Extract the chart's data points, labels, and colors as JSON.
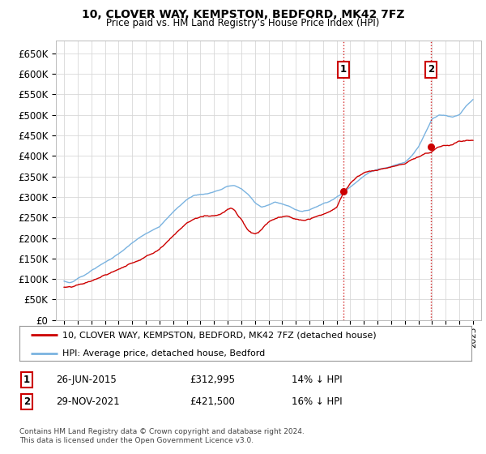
{
  "title": "10, CLOVER WAY, KEMPSTON, BEDFORD, MK42 7FZ",
  "subtitle": "Price paid vs. HM Land Registry’s House Price Index (HPI)",
  "legend_line1": "10, CLOVER WAY, KEMPSTON, BEDFORD, MK42 7FZ (detached house)",
  "legend_line2": "HPI: Average price, detached house, Bedford",
  "footer": "Contains HM Land Registry data © Crown copyright and database right 2024.\nThis data is licensed under the Open Government Licence v3.0.",
  "annotation1": {
    "num": "1",
    "date": "26-JUN-2015",
    "price": "£312,995",
    "pct": "14% ↓ HPI"
  },
  "annotation2": {
    "num": "2",
    "date": "29-NOV-2021",
    "price": "£421,500",
    "pct": "16% ↓ HPI"
  },
  "sale1_year": 2015.49,
  "sale1_price": 312995,
  "sale2_year": 2021.91,
  "sale2_price": 421500,
  "hpi_color": "#7ab3e0",
  "price_color": "#cc0000",
  "vline_color": "#cc0000",
  "background_color": "#ffffff",
  "grid_color": "#d8d8d8",
  "ylim": [
    0,
    680000
  ],
  "yticks": [
    0,
    50000,
    100000,
    150000,
    200000,
    250000,
    300000,
    350000,
    400000,
    450000,
    500000,
    550000,
    600000,
    650000
  ],
  "xmin": 1994.4,
  "xmax": 2025.6,
  "hpi_years": [
    1995.0,
    1995.08,
    1995.17,
    1995.25,
    1995.33,
    1995.42,
    1995.5,
    1995.58,
    1995.67,
    1995.75,
    1995.83,
    1995.92,
    1996.0,
    1996.5,
    1997.0,
    1997.5,
    1998.0,
    1998.5,
    1999.0,
    1999.5,
    2000.0,
    2000.5,
    2001.0,
    2001.5,
    2002.0,
    2002.5,
    2003.0,
    2003.5,
    2004.0,
    2004.5,
    2005.0,
    2005.5,
    2006.0,
    2006.5,
    2007.0,
    2007.5,
    2008.0,
    2008.5,
    2009.0,
    2009.5,
    2010.0,
    2010.5,
    2011.0,
    2011.5,
    2012.0,
    2012.5,
    2013.0,
    2013.5,
    2014.0,
    2014.5,
    2015.0,
    2015.5,
    2016.0,
    2016.5,
    2017.0,
    2017.5,
    2018.0,
    2018.5,
    2019.0,
    2019.5,
    2020.0,
    2020.5,
    2021.0,
    2021.5,
    2022.0,
    2022.5,
    2023.0,
    2023.5,
    2024.0,
    2024.5,
    2025.0
  ],
  "hpi_vals": [
    95000,
    94000,
    93000,
    92500,
    92000,
    91500,
    92000,
    93000,
    94000,
    96000,
    98000,
    100000,
    102000,
    110000,
    122000,
    132000,
    142000,
    152000,
    163000,
    175000,
    188000,
    200000,
    210000,
    218000,
    228000,
    248000,
    265000,
    280000,
    295000,
    305000,
    308000,
    310000,
    315000,
    320000,
    328000,
    330000,
    322000,
    308000,
    288000,
    278000,
    282000,
    290000,
    285000,
    280000,
    272000,
    268000,
    272000,
    280000,
    288000,
    295000,
    305000,
    315000,
    330000,
    345000,
    358000,
    368000,
    375000,
    378000,
    382000,
    388000,
    392000,
    408000,
    432000,
    465000,
    500000,
    510000,
    510000,
    505000,
    510000,
    530000,
    545000
  ],
  "red_years": [
    1995.0,
    1995.25,
    1995.5,
    1995.75,
    1996.0,
    1996.5,
    1997.0,
    1997.5,
    1998.0,
    1998.5,
    1999.0,
    1999.5,
    2000.0,
    2000.5,
    2001.0,
    2001.5,
    2002.0,
    2002.5,
    2003.0,
    2003.5,
    2004.0,
    2004.5,
    2005.0,
    2005.5,
    2006.0,
    2006.5,
    2007.0,
    2007.25,
    2007.5,
    2007.75,
    2008.0,
    2008.25,
    2008.5,
    2008.75,
    2009.0,
    2009.25,
    2009.5,
    2009.75,
    2010.0,
    2010.5,
    2011.0,
    2011.5,
    2012.0,
    2012.5,
    2013.0,
    2013.5,
    2014.0,
    2014.5,
    2015.0,
    2015.49,
    2016.0,
    2016.5,
    2017.0,
    2017.5,
    2018.0,
    2018.5,
    2019.0,
    2019.5,
    2020.0,
    2020.5,
    2021.0,
    2021.5,
    2021.91,
    2022.25,
    2022.5,
    2023.0,
    2023.5,
    2024.0,
    2024.5,
    2025.0
  ],
  "red_vals": [
    80000,
    79000,
    78000,
    80000,
    82000,
    86000,
    92000,
    98000,
    105000,
    112000,
    120000,
    128000,
    136000,
    145000,
    155000,
    163000,
    175000,
    192000,
    208000,
    225000,
    240000,
    250000,
    255000,
    258000,
    260000,
    265000,
    278000,
    282000,
    278000,
    265000,
    255000,
    240000,
    228000,
    222000,
    218000,
    222000,
    228000,
    238000,
    245000,
    252000,
    255000,
    255000,
    248000,
    245000,
    248000,
    255000,
    262000,
    270000,
    278000,
    312995,
    335000,
    350000,
    362000,
    368000,
    372000,
    375000,
    378000,
    382000,
    388000,
    400000,
    408000,
    418000,
    421500,
    430000,
    435000,
    440000,
    442000,
    448000,
    450000,
    450000
  ]
}
